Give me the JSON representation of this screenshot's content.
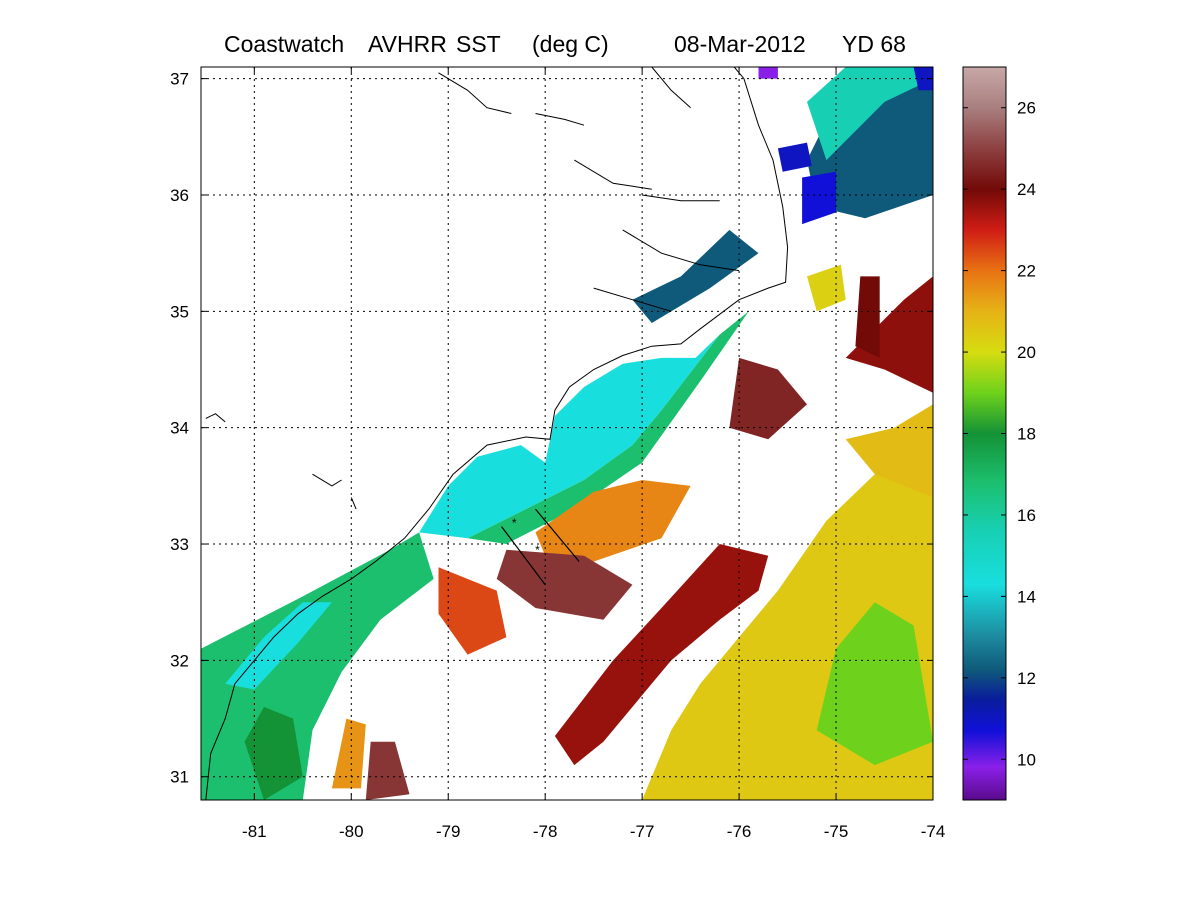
{
  "title": {
    "product": "Coastwatch",
    "sensor": "AVHRR",
    "variable": "SST",
    "units": "(deg C)",
    "date": "08-Mar-2012",
    "yearday": "YD 68"
  },
  "map": {
    "lon_range": [
      -81.55,
      -74.0
    ],
    "lat_range": [
      30.8,
      37.1
    ],
    "lon_ticks": [
      {
        "value": -81,
        "label": "-81"
      },
      {
        "value": -80,
        "label": "-80"
      },
      {
        "value": -79,
        "label": "-79"
      },
      {
        "value": -78,
        "label": "-78"
      },
      {
        "value": -77,
        "label": "-77"
      },
      {
        "value": -76,
        "label": "-76"
      },
      {
        "value": -75,
        "label": "-75"
      },
      {
        "value": -74,
        "label": "-74"
      }
    ],
    "lat_ticks": [
      {
        "value": 31,
        "label": "31"
      },
      {
        "value": 32,
        "label": "32"
      },
      {
        "value": 33,
        "label": "33"
      },
      {
        "value": 34,
        "label": "34"
      },
      {
        "value": 35,
        "label": "35"
      },
      {
        "value": 36,
        "label": "36"
      },
      {
        "value": 37,
        "label": "37"
      }
    ],
    "grid": true,
    "coastline": [
      [
        -81.5,
        30.8
      ],
      [
        -81.45,
        31.2
      ],
      [
        -81.3,
        31.5
      ],
      [
        -81.2,
        31.8
      ],
      [
        -81.0,
        32.0
      ],
      [
        -80.8,
        32.2
      ],
      [
        -80.55,
        32.4
      ],
      [
        -80.3,
        32.55
      ],
      [
        -80.0,
        32.7
      ],
      [
        -79.75,
        32.85
      ],
      [
        -79.45,
        33.05
      ],
      [
        -79.2,
        33.3
      ],
      [
        -78.95,
        33.6
      ],
      [
        -78.6,
        33.85
      ],
      [
        -78.2,
        33.92
      ],
      [
        -77.95,
        33.9
      ],
      [
        -77.9,
        34.15
      ],
      [
        -77.75,
        34.35
      ],
      [
        -77.5,
        34.5
      ],
      [
        -77.2,
        34.62
      ],
      [
        -76.9,
        34.7
      ],
      [
        -76.6,
        34.72
      ],
      [
        -76.4,
        34.85
      ],
      [
        -76.0,
        35.1
      ],
      [
        -75.7,
        35.2
      ],
      [
        -75.52,
        35.25
      ],
      [
        -75.5,
        35.55
      ],
      [
        -75.55,
        35.9
      ],
      [
        -75.65,
        36.3
      ],
      [
        -75.8,
        36.6
      ],
      [
        -75.95,
        37.0
      ],
      [
        -76.05,
        37.1
      ]
    ],
    "inland_features": [
      [
        [
          -81.5,
          34.08
        ],
        [
          -81.4,
          34.12
        ],
        [
          -81.3,
          34.05
        ]
      ],
      [
        [
          -80.4,
          33.6
        ],
        [
          -80.2,
          33.5
        ],
        [
          -80.1,
          33.55
        ]
      ],
      [
        [
          -80.0,
          33.4
        ],
        [
          -79.95,
          33.3
        ]
      ],
      [
        [
          -79.1,
          37.05
        ],
        [
          -78.8,
          36.9
        ],
        [
          -78.6,
          36.75
        ],
        [
          -78.35,
          36.7
        ]
      ],
      [
        [
          -78.1,
          36.7
        ],
        [
          -77.8,
          36.65
        ],
        [
          -77.6,
          36.6
        ]
      ],
      [
        [
          -77.2,
          35.7
        ],
        [
          -76.8,
          35.5
        ],
        [
          -76.4,
          35.4
        ],
        [
          -76.0,
          35.35
        ]
      ],
      [
        [
          -77.0,
          36.0
        ],
        [
          -76.6,
          35.95
        ],
        [
          -76.2,
          35.95
        ]
      ],
      [
        [
          -77.5,
          35.2
        ],
        [
          -77.1,
          35.1
        ],
        [
          -76.7,
          35.0
        ]
      ],
      [
        [
          -77.7,
          36.3
        ],
        [
          -77.3,
          36.1
        ],
        [
          -76.9,
          36.05
        ]
      ],
      [
        [
          -76.9,
          37.1
        ],
        [
          -76.7,
          36.9
        ],
        [
          -76.5,
          36.75
        ]
      ]
    ],
    "transects": [
      {
        "start": [
          -78.45,
          33.15
        ],
        "end": [
          -78.0,
          32.65
        ]
      },
      {
        "start": [
          -78.1,
          33.3
        ],
        "end": [
          -77.65,
          32.85
        ]
      }
    ],
    "transect_stations": [
      [
        -78.32,
        33.18
      ],
      [
        -78.08,
        32.95
      ]
    ]
  },
  "chart_data": {
    "type": "heatmap",
    "colorbar_range": [
      9.0,
      27.0
    ],
    "colorbar_ticks": [
      {
        "value": 10,
        "label": "10"
      },
      {
        "value": 12,
        "label": "12"
      },
      {
        "value": 14,
        "label": "14"
      },
      {
        "value": 16,
        "label": "16"
      },
      {
        "value": 18,
        "label": "18"
      },
      {
        "value": 20,
        "label": "20"
      },
      {
        "value": 22,
        "label": "22"
      },
      {
        "value": 24,
        "label": "24"
      },
      {
        "value": 26,
        "label": "26"
      }
    ],
    "colormap": [
      {
        "value": 9.0,
        "color": "#5a0a8c"
      },
      {
        "value": 9.8,
        "color": "#8a20e8"
      },
      {
        "value": 10.7,
        "color": "#1010d8"
      },
      {
        "value": 11.5,
        "color": "#0a1e9a"
      },
      {
        "value": 12.2,
        "color": "#0f5a7a"
      },
      {
        "value": 13.0,
        "color": "#1d8a9e"
      },
      {
        "value": 14.3,
        "color": "#19dede"
      },
      {
        "value": 15.6,
        "color": "#17d0b4"
      },
      {
        "value": 16.8,
        "color": "#1cbf6e"
      },
      {
        "value": 18.0,
        "color": "#149236"
      },
      {
        "value": 19.0,
        "color": "#6ed21c"
      },
      {
        "value": 20.0,
        "color": "#d6dc10"
      },
      {
        "value": 21.0,
        "color": "#e6b316"
      },
      {
        "value": 22.0,
        "color": "#e87214"
      },
      {
        "value": 23.0,
        "color": "#cf1d15"
      },
      {
        "value": 24.0,
        "color": "#720a08"
      },
      {
        "value": 25.0,
        "color": "#8e4040"
      },
      {
        "value": 26.0,
        "color": "#a97f7f"
      },
      {
        "value": 27.0,
        "color": "#c8a8a8"
      }
    ],
    "sst_regions": [
      {
        "sst": 16.8,
        "points": [
          [
            -81.55,
            30.8
          ],
          [
            -81.55,
            32.1
          ],
          [
            -80.5,
            32.55
          ],
          [
            -79.6,
            32.95
          ],
          [
            -79.3,
            33.1
          ],
          [
            -79.15,
            32.7
          ],
          [
            -79.7,
            32.35
          ],
          [
            -80.1,
            31.9
          ],
          [
            -80.4,
            31.4
          ],
          [
            -80.5,
            30.8
          ]
        ]
      },
      {
        "sst": 18.0,
        "points": [
          [
            -80.9,
            30.8
          ],
          [
            -81.1,
            31.3
          ],
          [
            -80.9,
            31.6
          ],
          [
            -80.6,
            31.5
          ],
          [
            -80.5,
            31.0
          ]
        ]
      },
      {
        "sst": 21.5,
        "points": [
          [
            -80.2,
            30.9
          ],
          [
            -80.05,
            31.5
          ],
          [
            -79.85,
            31.45
          ],
          [
            -79.9,
            30.9
          ]
        ]
      },
      {
        "sst": 24.8,
        "points": [
          [
            -79.85,
            30.8
          ],
          [
            -79.8,
            31.3
          ],
          [
            -79.55,
            31.3
          ],
          [
            -79.4,
            30.85
          ]
        ]
      },
      {
        "sst": 14.3,
        "points": [
          [
            -81.3,
            31.8
          ],
          [
            -80.9,
            32.2
          ],
          [
            -80.5,
            32.5
          ],
          [
            -80.2,
            32.5
          ],
          [
            -80.55,
            32.15
          ],
          [
            -81.0,
            31.75
          ]
        ]
      },
      {
        "sst": 14.3,
        "points": [
          [
            -79.3,
            33.1
          ],
          [
            -79.0,
            33.5
          ],
          [
            -78.7,
            33.75
          ],
          [
            -78.25,
            33.85
          ],
          [
            -78.0,
            33.7
          ],
          [
            -77.9,
            34.1
          ],
          [
            -77.6,
            34.35
          ],
          [
            -77.2,
            34.55
          ],
          [
            -76.8,
            34.6
          ],
          [
            -76.45,
            34.6
          ],
          [
            -76.2,
            34.8
          ],
          [
            -76.8,
            34.15
          ],
          [
            -77.1,
            33.85
          ],
          [
            -77.6,
            33.55
          ],
          [
            -78.2,
            33.3
          ],
          [
            -78.8,
            33.05
          ]
        ]
      },
      {
        "sst": 16.8,
        "points": [
          [
            -78.8,
            33.05
          ],
          [
            -78.2,
            33.3
          ],
          [
            -77.6,
            33.55
          ],
          [
            -77.1,
            33.85
          ],
          [
            -76.8,
            34.15
          ],
          [
            -76.2,
            34.8
          ],
          [
            -75.9,
            35.0
          ],
          [
            -76.4,
            34.4
          ],
          [
            -77.0,
            33.7
          ],
          [
            -77.7,
            33.3
          ],
          [
            -78.4,
            33.0
          ]
        ]
      },
      {
        "sst": 21.7,
        "points": [
          [
            -78.1,
            33.1
          ],
          [
            -77.5,
            33.45
          ],
          [
            -77.0,
            33.55
          ],
          [
            -76.5,
            33.5
          ],
          [
            -76.8,
            33.05
          ],
          [
            -77.5,
            32.85
          ],
          [
            -78.0,
            32.9
          ]
        ]
      },
      {
        "sst": 22.5,
        "points": [
          [
            -79.1,
            32.8
          ],
          [
            -78.5,
            32.6
          ],
          [
            -78.4,
            32.2
          ],
          [
            -78.8,
            32.05
          ],
          [
            -79.1,
            32.4
          ]
        ]
      },
      {
        "sst": 24.8,
        "points": [
          [
            -78.4,
            32.95
          ],
          [
            -77.6,
            32.9
          ],
          [
            -77.1,
            32.65
          ],
          [
            -77.4,
            32.35
          ],
          [
            -78.1,
            32.45
          ],
          [
            -78.5,
            32.7
          ]
        ]
      },
      {
        "sst": 23.6,
        "points": [
          [
            -76.2,
            33.0
          ],
          [
            -75.7,
            32.9
          ],
          [
            -75.8,
            32.6
          ],
          [
            -76.2,
            32.35
          ],
          [
            -76.7,
            32.0
          ],
          [
            -77.0,
            31.7
          ],
          [
            -77.4,
            31.3
          ],
          [
            -77.7,
            31.1
          ],
          [
            -77.9,
            31.35
          ],
          [
            -77.3,
            32.0
          ],
          [
            -76.8,
            32.45
          ]
        ]
      },
      {
        "sst": 20.5,
        "points": [
          [
            -76.0,
            32.2
          ],
          [
            -75.6,
            32.6
          ],
          [
            -75.1,
            33.2
          ],
          [
            -74.6,
            33.6
          ],
          [
            -74.0,
            33.9
          ],
          [
            -74.0,
            30.8
          ],
          [
            -77.0,
            30.8
          ],
          [
            -76.7,
            31.4
          ],
          [
            -76.4,
            31.8
          ]
        ]
      },
      {
        "sst": 19.0,
        "points": [
          [
            -75.0,
            32.1
          ],
          [
            -74.6,
            32.5
          ],
          [
            -74.2,
            32.3
          ],
          [
            -74.0,
            31.3
          ],
          [
            -74.6,
            31.1
          ],
          [
            -75.2,
            31.4
          ]
        ]
      },
      {
        "sst": 24.5,
        "points": [
          [
            -76.0,
            34.6
          ],
          [
            -75.6,
            34.5
          ],
          [
            -75.3,
            34.2
          ],
          [
            -75.7,
            33.9
          ],
          [
            -76.1,
            34.0
          ]
        ]
      },
      {
        "sst": 23.7,
        "points": [
          [
            -74.9,
            34.6
          ],
          [
            -74.5,
            34.5
          ],
          [
            -74.0,
            34.3
          ],
          [
            -74.0,
            35.3
          ],
          [
            -74.3,
            35.1
          ]
        ]
      },
      {
        "sst": 20.8,
        "points": [
          [
            -74.9,
            33.9
          ],
          [
            -74.4,
            34.0
          ],
          [
            -74.0,
            34.2
          ],
          [
            -74.0,
            33.4
          ],
          [
            -74.6,
            33.6
          ]
        ]
      },
      {
        "sst": 12.2,
        "points": [
          [
            -77.1,
            35.1
          ],
          [
            -76.6,
            35.3
          ],
          [
            -76.1,
            35.7
          ],
          [
            -75.8,
            35.5
          ],
          [
            -76.3,
            35.2
          ],
          [
            -76.9,
            34.9
          ]
        ]
      },
      {
        "sst": 12.2,
        "points": [
          [
            -75.3,
            36.3
          ],
          [
            -75.0,
            36.8
          ],
          [
            -74.6,
            37.05
          ],
          [
            -74.0,
            37.1
          ],
          [
            -74.0,
            36.0
          ],
          [
            -74.7,
            35.8
          ],
          [
            -75.2,
            35.9
          ]
        ]
      },
      {
        "sst": 15.6,
        "points": [
          [
            -75.1,
            36.3
          ],
          [
            -74.5,
            36.8
          ],
          [
            -74.0,
            37.0
          ],
          [
            -74.0,
            37.1
          ],
          [
            -74.9,
            37.1
          ],
          [
            -75.3,
            36.8
          ]
        ]
      },
      {
        "sst": 10.7,
        "points": [
          [
            -75.35,
            35.75
          ],
          [
            -75.0,
            35.85
          ],
          [
            -75.0,
            36.2
          ],
          [
            -75.35,
            36.15
          ]
        ]
      },
      {
        "sst": 11.0,
        "points": [
          [
            -75.55,
            36.2
          ],
          [
            -75.25,
            36.25
          ],
          [
            -75.3,
            36.45
          ],
          [
            -75.6,
            36.4
          ]
        ]
      },
      {
        "sst": 11.0,
        "points": [
          [
            -74.15,
            36.9
          ],
          [
            -74.0,
            36.9
          ],
          [
            -74.0,
            37.1
          ],
          [
            -74.2,
            37.1
          ]
        ]
      },
      {
        "sst": 9.8,
        "points": [
          [
            -75.8,
            37.0
          ],
          [
            -75.6,
            37.0
          ],
          [
            -75.6,
            37.1
          ],
          [
            -75.8,
            37.1
          ]
        ]
      },
      {
        "sst": 20.3,
        "points": [
          [
            -75.3,
            35.3
          ],
          [
            -74.95,
            35.4
          ],
          [
            -74.9,
            35.1
          ],
          [
            -75.2,
            35.0
          ]
        ]
      },
      {
        "sst": 24.0,
        "points": [
          [
            -74.75,
            35.3
          ],
          [
            -74.55,
            35.3
          ],
          [
            -74.55,
            34.6
          ],
          [
            -74.8,
            34.7
          ]
        ]
      }
    ]
  }
}
